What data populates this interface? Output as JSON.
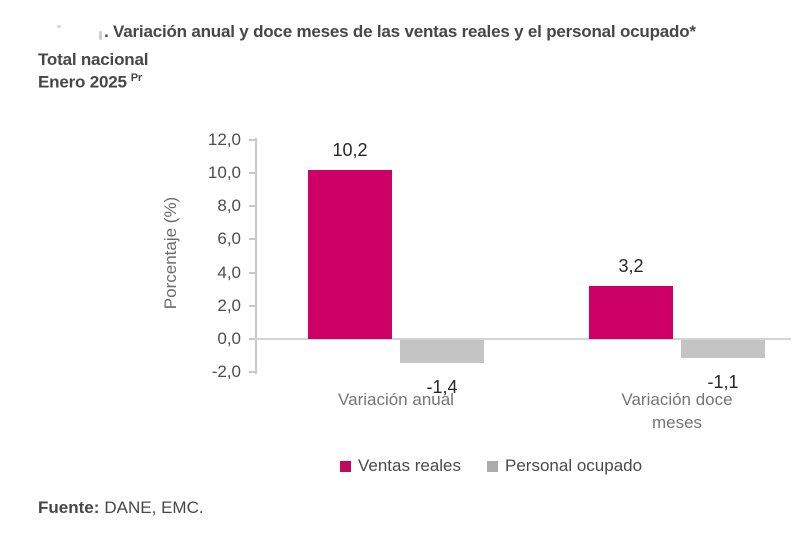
{
  "header": {
    "title": ". Variación anual y doce meses de las ventas reales y el personal ocupado*",
    "subtitle_region": "Total nacional",
    "subtitle_period": "Enero 2025",
    "subtitle_superscript": "Pr"
  },
  "chart_data": {
    "type": "bar",
    "categories": [
      "Variación anual",
      "Variación doce meses"
    ],
    "series": [
      {
        "name": "Ventas reales",
        "color": "#CC0066",
        "legend_color": "#C2075F",
        "values": [
          10.2,
          3.2
        ],
        "labels": [
          "10,2",
          "3,2"
        ]
      },
      {
        "name": "Personal ocupado",
        "color": "#C4C4C4",
        "legend_color": "#ABABAB",
        "values": [
          -1.4,
          -1.1
        ],
        "labels": [
          "-1,4",
          "-1,1"
        ]
      }
    ],
    "ylabel": "Porcentaje (%)",
    "ylim": [
      -2,
      12
    ],
    "grid": false,
    "legend_position": "bottom",
    "yticks": [
      {
        "label": "12,0",
        "value": 12
      },
      {
        "label": "10,0",
        "value": 10
      },
      {
        "label": "8,0",
        "value": 8
      },
      {
        "label": "6,0",
        "value": 6
      },
      {
        "label": "4,0",
        "value": 4
      },
      {
        "label": "2,0",
        "value": 2
      },
      {
        "label": "0,0",
        "value": 0
      },
      {
        "label": "-2,0",
        "value": -2
      }
    ]
  },
  "footer": {
    "source_label": "Fuente:",
    "source_text": "DANE, EMC."
  }
}
